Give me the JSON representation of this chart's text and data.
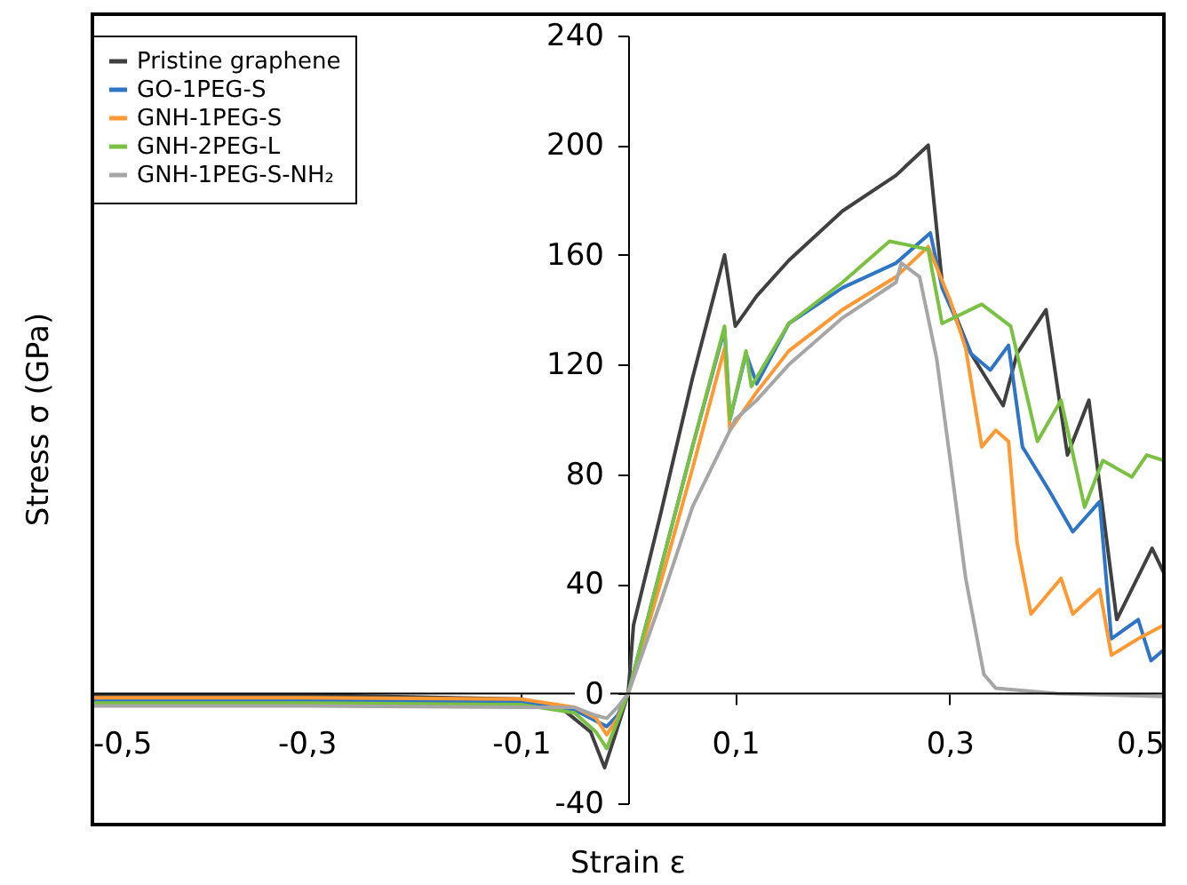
{
  "chart_data": {
    "type": "line",
    "xlabel": "Strain ε",
    "ylabel": "Stress σ (GPa)",
    "xlim": [
      -0.5,
      0.5
    ],
    "ylim": [
      -40,
      240
    ],
    "xticks": [
      {
        "value": -0.5,
        "label": "-0,5"
      },
      {
        "value": -0.3,
        "label": "-0,3"
      },
      {
        "value": -0.1,
        "label": "-0,1"
      },
      {
        "value": 0.1,
        "label": "0,1"
      },
      {
        "value": 0.3,
        "label": "0,3"
      },
      {
        "value": 0.5,
        "label": "0,5"
      }
    ],
    "yticks": [
      -40,
      0,
      40,
      80,
      120,
      160,
      200,
      240
    ],
    "legend": "top left",
    "marker": "none",
    "line_style": "solid",
    "series": [
      {
        "name": "Pristine graphene",
        "color": "#404040",
        "x": [
          -0.5,
          -0.3,
          -0.1,
          -0.06,
          -0.035,
          -0.022,
          -0.012,
          0,
          0.005,
          0.03,
          0.06,
          0.09,
          0.1,
          0.12,
          0.15,
          0.2,
          0.25,
          0.28,
          0.293,
          0.32,
          0.35,
          0.363,
          0.39,
          0.41,
          0.43,
          0.456,
          0.489,
          0.5
        ],
        "values": [
          -0.5,
          -0.5,
          -2,
          -6,
          -14,
          -27,
          -15,
          0,
          25,
          65,
          115,
          160,
          134,
          145,
          158,
          176,
          189,
          200,
          150,
          124,
          105,
          124,
          140,
          87,
          107,
          27,
          53,
          44
        ]
      },
      {
        "name": "GO-1PEG-S",
        "color": "#2e75c6",
        "x": [
          -0.5,
          -0.3,
          -0.1,
          -0.05,
          -0.03,
          -0.02,
          -0.01,
          0,
          0.03,
          0.06,
          0.09,
          0.095,
          0.11,
          0.12,
          0.15,
          0.2,
          0.25,
          0.282,
          0.293,
          0.32,
          0.338,
          0.355,
          0.368,
          0.393,
          0.415,
          0.44,
          0.451,
          0.476,
          0.488,
          0.5
        ],
        "values": [
          -2.5,
          -2.5,
          -3,
          -6,
          -10,
          -12,
          -8,
          0,
          45,
          90,
          133,
          100,
          124,
          113,
          135,
          148,
          157,
          168,
          148,
          124,
          118,
          127,
          90,
          74,
          59,
          70,
          20,
          27,
          12,
          16
        ]
      },
      {
        "name": "GNH-1PEG-S",
        "color": "#ff9933",
        "x": [
          -0.5,
          -0.3,
          -0.1,
          -0.05,
          -0.03,
          -0.02,
          -0.01,
          0,
          0.03,
          0.06,
          0.09,
          0.095,
          0.12,
          0.15,
          0.2,
          0.25,
          0.28,
          0.3,
          0.315,
          0.33,
          0.343,
          0.355,
          0.363,
          0.376,
          0.404,
          0.415,
          0.44,
          0.451,
          0.476,
          0.5
        ],
        "values": [
          -1.5,
          -1.5,
          -2,
          -5,
          -9,
          -15,
          -9,
          0,
          40,
          82,
          126,
          96,
          110,
          125,
          140,
          152,
          163,
          144,
          126,
          90,
          96,
          92,
          55,
          29,
          42,
          29,
          38,
          14,
          20,
          25
        ]
      },
      {
        "name": "GNH-2PEG-L",
        "color": "#7ac143",
        "x": [
          -0.5,
          -0.3,
          -0.1,
          -0.05,
          -0.03,
          -0.02,
          -0.01,
          0,
          0.03,
          0.06,
          0.09,
          0.095,
          0.11,
          0.115,
          0.15,
          0.2,
          0.244,
          0.28,
          0.293,
          0.33,
          0.357,
          0.382,
          0.404,
          0.426,
          0.443,
          0.47,
          0.484,
          0.5
        ],
        "values": [
          -3.5,
          -3.5,
          -4,
          -7,
          -14,
          -20,
          -10,
          0,
          45,
          90,
          134,
          100,
          125,
          112,
          135,
          150,
          165,
          162,
          135,
          142,
          134,
          92,
          107,
          68,
          85,
          79,
          87,
          85
        ]
      },
      {
        "name": "GNH-1PEG-S-NH₂",
        "color": "#a6a6a6",
        "x": [
          -0.5,
          -0.3,
          -0.1,
          -0.05,
          -0.03,
          -0.02,
          -0.01,
          0,
          0.03,
          0.06,
          0.09,
          0.1,
          0.12,
          0.15,
          0.2,
          0.25,
          0.255,
          0.272,
          0.288,
          0.302,
          0.315,
          0.332,
          0.343,
          0.4,
          0.5
        ],
        "values": [
          -4.5,
          -4.5,
          -5,
          -5,
          -8,
          -9,
          -5,
          0,
          33,
          68,
          92,
          100,
          107,
          120,
          137,
          150,
          157,
          152,
          122,
          81,
          42,
          7,
          2,
          0,
          -1
        ]
      }
    ]
  }
}
